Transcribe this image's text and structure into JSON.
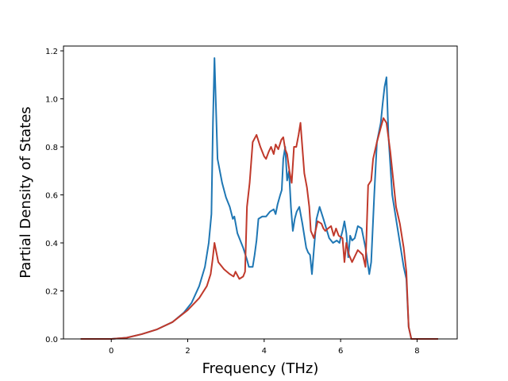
{
  "chart_data": {
    "type": "line",
    "title": "",
    "xlabel": "Frequency (THz)",
    "ylabel": "Partial Density of States",
    "xlim": [
      -1.25,
      9.05
    ],
    "ylim": [
      0.0,
      1.22
    ],
    "xticks": [
      0,
      2,
      4,
      6,
      8
    ],
    "xtick_labels": [
      "0",
      "2",
      "4",
      "6",
      "8"
    ],
    "yticks": [
      0.0,
      0.2,
      0.4,
      0.6,
      0.8,
      1.0,
      1.2
    ],
    "ytick_labels": [
      "0.0",
      "0.2",
      "0.4",
      "0.6",
      "0.8",
      "1.0",
      "1.2"
    ],
    "grid": false,
    "series": [
      {
        "color": "#1f77b4",
        "x": [
          -0.8,
          0.0,
          0.4,
          0.8,
          1.2,
          1.6,
          1.9,
          2.1,
          2.3,
          2.45,
          2.55,
          2.62,
          2.66,
          2.7,
          2.78,
          2.9,
          3.0,
          3.1,
          3.18,
          3.22,
          3.3,
          3.45,
          3.55,
          3.6,
          3.7,
          3.75,
          3.8,
          3.85,
          3.95,
          4.05,
          4.15,
          4.25,
          4.3,
          4.35,
          4.42,
          4.46,
          4.5,
          4.55,
          4.6,
          4.65,
          4.7,
          4.75,
          4.8,
          4.85,
          4.92,
          5.0,
          5.1,
          5.15,
          5.2,
          5.25,
          5.3,
          5.37,
          5.45,
          5.55,
          5.7,
          5.8,
          5.9,
          5.97,
          6.0,
          6.05,
          6.1,
          6.15,
          6.2,
          6.25,
          6.3,
          6.37,
          6.45,
          6.55,
          6.6,
          6.65,
          6.75,
          6.8,
          6.88,
          6.95,
          7.05,
          7.1,
          7.15,
          7.2,
          7.25,
          7.35,
          7.45,
          7.55,
          7.65,
          7.72,
          7.78,
          7.85,
          8.0,
          8.55
        ],
        "y": [
          0.0,
          0.0,
          0.005,
          0.02,
          0.04,
          0.07,
          0.11,
          0.15,
          0.22,
          0.3,
          0.4,
          0.52,
          0.9,
          1.17,
          0.75,
          0.65,
          0.59,
          0.55,
          0.5,
          0.51,
          0.44,
          0.38,
          0.33,
          0.3,
          0.3,
          0.35,
          0.41,
          0.5,
          0.51,
          0.51,
          0.53,
          0.54,
          0.52,
          0.56,
          0.6,
          0.62,
          0.75,
          0.8,
          0.66,
          0.7,
          0.55,
          0.45,
          0.5,
          0.53,
          0.55,
          0.48,
          0.38,
          0.36,
          0.35,
          0.27,
          0.37,
          0.5,
          0.55,
          0.5,
          0.42,
          0.4,
          0.41,
          0.4,
          0.42,
          0.45,
          0.49,
          0.44,
          0.34,
          0.43,
          0.41,
          0.42,
          0.47,
          0.46,
          0.42,
          0.38,
          0.27,
          0.32,
          0.6,
          0.82,
          0.9,
          0.98,
          1.05,
          1.09,
          0.85,
          0.6,
          0.5,
          0.4,
          0.3,
          0.25,
          0.05,
          0.0,
          0.0,
          0.0
        ]
      },
      {
        "color": "#c0392b",
        "x": [
          -0.8,
          0.0,
          0.4,
          0.8,
          1.2,
          1.6,
          2.0,
          2.3,
          2.5,
          2.6,
          2.65,
          2.7,
          2.8,
          2.95,
          3.1,
          3.2,
          3.25,
          3.35,
          3.45,
          3.5,
          3.55,
          3.62,
          3.7,
          3.8,
          3.9,
          4.0,
          4.05,
          4.12,
          4.18,
          4.25,
          4.3,
          4.37,
          4.45,
          4.5,
          4.55,
          4.6,
          4.66,
          4.72,
          4.78,
          4.84,
          4.9,
          4.95,
          5.05,
          5.12,
          5.18,
          5.22,
          5.3,
          5.4,
          5.5,
          5.55,
          5.6,
          5.67,
          5.75,
          5.82,
          5.88,
          5.95,
          6.05,
          6.1,
          6.15,
          6.22,
          6.3,
          6.45,
          6.58,
          6.65,
          6.72,
          6.8,
          6.85,
          6.95,
          7.05,
          7.12,
          7.2,
          7.3,
          7.45,
          7.55,
          7.65,
          7.72,
          7.78,
          7.85,
          8.0,
          8.55
        ],
        "y": [
          0.0,
          0.0,
          0.005,
          0.02,
          0.04,
          0.07,
          0.12,
          0.17,
          0.22,
          0.27,
          0.33,
          0.4,
          0.32,
          0.29,
          0.27,
          0.26,
          0.28,
          0.25,
          0.26,
          0.28,
          0.55,
          0.65,
          0.82,
          0.85,
          0.8,
          0.76,
          0.75,
          0.78,
          0.8,
          0.77,
          0.81,
          0.79,
          0.83,
          0.84,
          0.79,
          0.77,
          0.7,
          0.65,
          0.8,
          0.8,
          0.85,
          0.9,
          0.69,
          0.63,
          0.55,
          0.45,
          0.42,
          0.49,
          0.48,
          0.46,
          0.45,
          0.46,
          0.47,
          0.43,
          0.46,
          0.43,
          0.42,
          0.32,
          0.4,
          0.35,
          0.32,
          0.37,
          0.35,
          0.3,
          0.64,
          0.66,
          0.75,
          0.82,
          0.88,
          0.92,
          0.9,
          0.78,
          0.55,
          0.48,
          0.38,
          0.28,
          0.05,
          0.0,
          0.0,
          0.0
        ]
      }
    ]
  }
}
